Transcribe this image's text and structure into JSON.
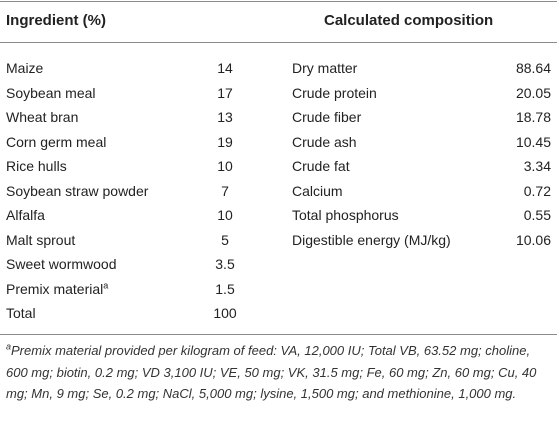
{
  "table": {
    "headers": [
      "Ingredient (%)",
      "Calculated composition"
    ],
    "ingredients": [
      {
        "name": "Maize",
        "value": "14"
      },
      {
        "name": "Soybean meal",
        "value": "17"
      },
      {
        "name": "Wheat bran",
        "value": "13"
      },
      {
        "name": "Corn germ meal",
        "value": "19"
      },
      {
        "name": "Rice hulls",
        "value": "10"
      },
      {
        "name": "Soybean straw powder",
        "value": "7"
      },
      {
        "name": "Alfalfa",
        "value": "10"
      },
      {
        "name": "Malt sprout",
        "value": "5"
      },
      {
        "name": "Sweet wormwood",
        "value": "3.5"
      },
      {
        "name": "Premix material",
        "marker": "a",
        "value": "1.5"
      },
      {
        "name": "Total",
        "value": "100"
      }
    ],
    "composition": [
      {
        "name": "Dry matter",
        "value": "88.64"
      },
      {
        "name": "Crude protein",
        "value": "20.05"
      },
      {
        "name": "Crude fiber",
        "value": "18.78"
      },
      {
        "name": "Crude ash",
        "value": "10.45"
      },
      {
        "name": "Crude fat",
        "value": "3.34"
      },
      {
        "name": "Calcium",
        "value": "0.72"
      },
      {
        "name": "Total phosphorus",
        "value": "0.55"
      },
      {
        "name": "Digestible energy (MJ/kg)",
        "value": "10.06"
      }
    ]
  },
  "footnote": {
    "marker": "a",
    "text": "Premix material provided per kilogram of feed: VA, 12,000 IU; Total VB, 63.52 mg; choline, 600 mg; biotin, 0.2 mg; VD 3,100 IU; VE, 50 mg; VK, 31.5 mg; Fe, 60 mg; Zn, 60 mg; Cu, 40 mg; Mn, 9 mg; Se, 0.2 mg; NaCl, 5,000 mg; lysine, 1,500 mg; and methionine, 1,000 mg."
  }
}
